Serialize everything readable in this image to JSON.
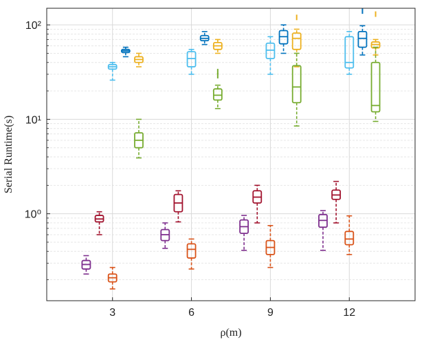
{
  "chart_data": {
    "type": "box",
    "title": "",
    "xlabel": "ρ(m)",
    "ylabel": "Serial Runtime(s)",
    "yscale": "log",
    "xlim": [
      0.5,
      14.5
    ],
    "ylim": [
      0.12,
      150
    ],
    "grid": true,
    "x_ticks": [
      3,
      6,
      9,
      12
    ],
    "x_tick_labels": [
      "3",
      "6",
      "9",
      "12"
    ],
    "y_ticks": [
      1,
      10,
      100
    ],
    "y_tick_labels": [
      "10⁰",
      "10¹",
      "10²"
    ],
    "series": [
      {
        "name": "purple",
        "color": "#7E2F8E",
        "offset": -1,
        "boxes": [
          {
            "x": 3,
            "min": 0.23,
            "q1": 0.26,
            "median": 0.29,
            "q3": 0.32,
            "max": 0.36,
            "outliers": []
          },
          {
            "x": 6,
            "min": 0.43,
            "q1": 0.52,
            "median": 0.6,
            "q3": 0.68,
            "max": 0.8,
            "outliers": []
          },
          {
            "x": 9,
            "min": 0.41,
            "q1": 0.62,
            "median": 0.73,
            "q3": 0.86,
            "max": 0.96,
            "outliers": []
          },
          {
            "x": 12,
            "min": 0.41,
            "q1": 0.72,
            "median": 0.85,
            "q3": 0.98,
            "max": 1.08,
            "outliers": []
          }
        ]
      },
      {
        "name": "dark-red",
        "color": "#A2142F",
        "offset": -0.5,
        "boxes": [
          {
            "x": 3,
            "min": 0.6,
            "q1": 0.82,
            "median": 0.88,
            "q3": 0.96,
            "max": 1.05,
            "outliers": []
          },
          {
            "x": 6,
            "min": 0.82,
            "q1": 1.05,
            "median": 1.3,
            "q3": 1.6,
            "max": 1.75,
            "outliers": []
          },
          {
            "x": 9,
            "min": 0.8,
            "q1": 1.3,
            "median": 1.5,
            "q3": 1.75,
            "max": 2.0,
            "outliers": []
          },
          {
            "x": 12,
            "min": 0.8,
            "q1": 1.42,
            "median": 1.58,
            "q3": 1.78,
            "max": 2.2,
            "outliers": []
          }
        ]
      },
      {
        "name": "orange",
        "color": "#D95319",
        "offset": 0,
        "boxes": [
          {
            "x": 3,
            "min": 0.16,
            "q1": 0.19,
            "median": 0.21,
            "q3": 0.23,
            "max": 0.27,
            "outliers": []
          },
          {
            "x": 6,
            "min": 0.26,
            "q1": 0.34,
            "median": 0.42,
            "q3": 0.48,
            "max": 0.54,
            "outliers": []
          },
          {
            "x": 9,
            "min": 0.27,
            "q1": 0.37,
            "median": 0.44,
            "q3": 0.52,
            "max": 0.75,
            "outliers": []
          },
          {
            "x": 12,
            "min": 0.37,
            "q1": 0.47,
            "median": 0.54,
            "q3": 0.65,
            "max": 0.95,
            "outliers": []
          }
        ]
      },
      {
        "name": "light-blue",
        "color": "#4DBEEE",
        "offset": 0,
        "boxes": [
          {
            "x": 3,
            "min": 26,
            "q1": 34,
            "median": 36,
            "q3": 38,
            "max": 40,
            "outliers": []
          },
          {
            "x": 6,
            "min": 30,
            "q1": 36,
            "median": 44,
            "q3": 52,
            "max": 55,
            "outliers": []
          },
          {
            "x": 9,
            "min": 30,
            "q1": 44,
            "median": 54,
            "q3": 64,
            "max": 75,
            "outliers": []
          },
          {
            "x": 12,
            "min": 30,
            "q1": 35,
            "median": 40,
            "q3": 75,
            "max": 85,
            "outliers": []
          }
        ]
      },
      {
        "name": "blue",
        "color": "#0072BD",
        "offset": 0.5,
        "boxes": [
          {
            "x": 3,
            "min": 46,
            "q1": 51,
            "median": 53,
            "q3": 55,
            "max": 58,
            "outliers": []
          },
          {
            "x": 6,
            "min": 62,
            "q1": 68,
            "median": 72,
            "q3": 77,
            "max": 85,
            "outliers": []
          },
          {
            "x": 9,
            "min": 50,
            "q1": 63,
            "median": 75,
            "q3": 87,
            "max": 100,
            "outliers": []
          },
          {
            "x": 12,
            "min": 48,
            "q1": 58,
            "median": 72,
            "q3": 85,
            "max": 98,
            "outliers": [
              140
            ]
          }
        ]
      },
      {
        "name": "yellow",
        "color": "#EDB120",
        "offset": 1,
        "boxes": [
          {
            "x": 3,
            "min": 36,
            "q1": 40,
            "median": 43,
            "q3": 46,
            "max": 50,
            "outliers": []
          },
          {
            "x": 6,
            "min": 50,
            "q1": 55,
            "median": 60,
            "q3": 65,
            "max": 70,
            "outliers": []
          },
          {
            "x": 9,
            "min": 36,
            "q1": 55,
            "median": 72,
            "q3": 82,
            "max": 90,
            "outliers": [
              120
            ]
          },
          {
            "x": 12,
            "min": 48,
            "q1": 57,
            "median": 62,
            "q3": 66,
            "max": 70,
            "outliers": [
              130
            ]
          }
        ]
      },
      {
        "name": "green",
        "color": "#77AC30",
        "offset": 1,
        "boxes": [
          {
            "x": 3,
            "min": 3.9,
            "q1": 5.0,
            "median": 6.0,
            "q3": 7.2,
            "max": 10.0,
            "outliers": []
          },
          {
            "x": 6,
            "min": 13,
            "q1": 16,
            "median": 18,
            "q3": 21,
            "max": 23,
            "outliers": [
              29,
              32
            ]
          },
          {
            "x": 9,
            "min": 8.5,
            "q1": 15,
            "median": 22,
            "q3": 37,
            "max": 50,
            "outliers": []
          },
          {
            "x": 12,
            "min": 9.5,
            "q1": 12,
            "median": 14,
            "q3": 40,
            "max": 58,
            "outliers": []
          }
        ]
      }
    ]
  }
}
